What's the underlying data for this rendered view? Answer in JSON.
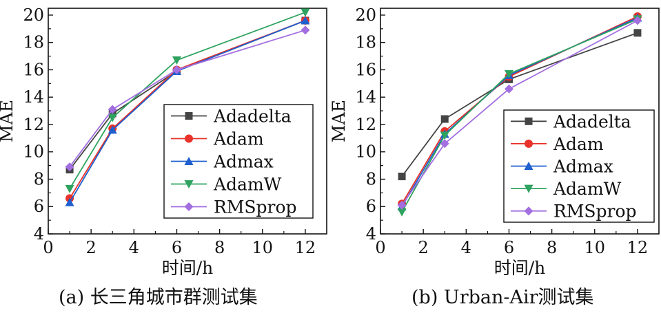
{
  "chart_data": [
    {
      "type": "line",
      "caption": "(a) 长三角城市群测试集",
      "xlabel": "时间/h",
      "ylabel": "MAE",
      "xlim": [
        0,
        13
      ],
      "ylim": [
        4,
        20.5
      ],
      "xticks": [
        0,
        2,
        4,
        6,
        8,
        10,
        12
      ],
      "yticks": [
        4,
        6,
        8,
        10,
        12,
        14,
        16,
        18,
        20
      ],
      "x": [
        1,
        3,
        6,
        12
      ],
      "legend_position": "bottom-right",
      "series": [
        {
          "name": "Adadelta",
          "color": "#444444",
          "marker": "square",
          "values": [
            8.7,
            12.8,
            15.9,
            19.6
          ]
        },
        {
          "name": "Adam",
          "color": "#e8322a",
          "marker": "circle",
          "values": [
            6.6,
            11.7,
            16.0,
            19.6
          ]
        },
        {
          "name": "Admax",
          "color": "#1f5fcf",
          "marker": "triangle-up",
          "values": [
            6.3,
            11.6,
            15.9,
            19.6
          ]
        },
        {
          "name": "AdamW",
          "color": "#2ea35f",
          "marker": "triangle-down",
          "values": [
            7.3,
            12.5,
            16.7,
            20.2
          ]
        },
        {
          "name": "RMSprop",
          "color": "#a36ee0",
          "marker": "diamond",
          "values": [
            8.9,
            13.1,
            16.0,
            18.9
          ]
        }
      ]
    },
    {
      "type": "line",
      "caption": "(b) Urban-Air测试集",
      "xlabel": "时间/h",
      "ylabel": "MAE",
      "xlim": [
        0,
        13
      ],
      "ylim": [
        4,
        20.5
      ],
      "xticks": [
        0,
        2,
        4,
        6,
        8,
        10,
        12
      ],
      "yticks": [
        4,
        6,
        8,
        10,
        12,
        14,
        16,
        18,
        20
      ],
      "x": [
        1,
        3,
        6,
        12
      ],
      "legend_position": "bottom-right",
      "series": [
        {
          "name": "Adadelta",
          "color": "#444444",
          "marker": "square",
          "values": [
            8.2,
            12.4,
            15.3,
            18.7
          ]
        },
        {
          "name": "Adam",
          "color": "#e8322a",
          "marker": "circle",
          "values": [
            6.2,
            11.5,
            15.5,
            19.9
          ]
        },
        {
          "name": "Admax",
          "color": "#1f5fcf",
          "marker": "triangle-up",
          "values": [
            6.0,
            11.3,
            15.6,
            19.8
          ]
        },
        {
          "name": "AdamW",
          "color": "#2ea35f",
          "marker": "triangle-down",
          "values": [
            5.6,
            11.2,
            15.7,
            19.7
          ]
        },
        {
          "name": "RMSprop",
          "color": "#a36ee0",
          "marker": "diamond",
          "values": [
            6.1,
            10.6,
            14.6,
            19.6
          ]
        }
      ]
    }
  ]
}
